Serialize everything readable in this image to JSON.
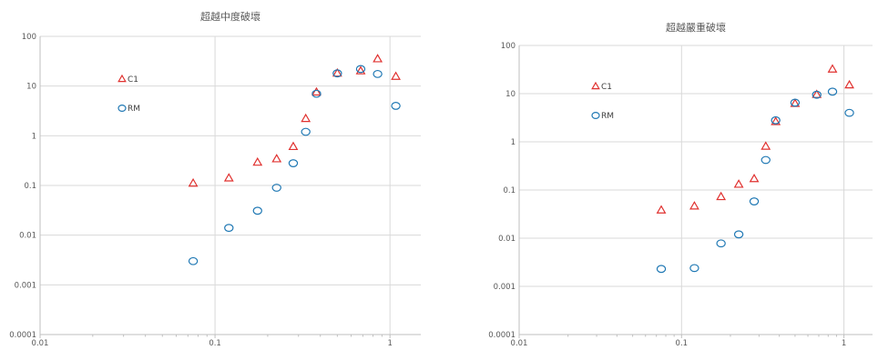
{
  "chart_data": [
    {
      "type": "scatter",
      "title": "超越中度破壞",
      "xscale": "log",
      "yscale": "log",
      "xlim": [
        0.01,
        1.5
      ],
      "ylim": [
        0.0001,
        100
      ],
      "xticks": [
        "0.01",
        "0.1",
        "1"
      ],
      "yticks": [
        "0.0001",
        "0.001",
        "0.01",
        "0.1",
        "1",
        "10",
        "100"
      ],
      "grid": true,
      "legend_position": "left",
      "series": [
        {
          "name": "C1",
          "marker": "triangle",
          "color": "#e0312f",
          "points": [
            [
              0.075,
              0.11
            ],
            [
              0.12,
              0.14
            ],
            [
              0.175,
              0.29
            ],
            [
              0.225,
              0.34
            ],
            [
              0.28,
              0.6
            ],
            [
              0.33,
              2.2
            ],
            [
              0.38,
              7.5
            ],
            [
              0.5,
              18
            ],
            [
              0.68,
              20
            ],
            [
              0.85,
              35
            ],
            [
              1.08,
              15.5
            ]
          ]
        },
        {
          "name": "RM",
          "marker": "circle",
          "color": "#1f78b4",
          "points": [
            [
              0.075,
              0.003
            ],
            [
              0.12,
              0.014
            ],
            [
              0.175,
              0.031
            ],
            [
              0.225,
              0.09
            ],
            [
              0.28,
              0.28
            ],
            [
              0.33,
              1.2
            ],
            [
              0.38,
              7
            ],
            [
              0.5,
              18
            ],
            [
              0.68,
              22
            ],
            [
              0.85,
              17.5
            ],
            [
              1.08,
              4
            ]
          ]
        }
      ]
    },
    {
      "type": "scatter",
      "title": "超越嚴重破壞",
      "xscale": "log",
      "yscale": "log",
      "xlim": [
        0.01,
        1.5
      ],
      "ylim": [
        0.0001,
        100
      ],
      "xticks": [
        "0.01",
        "0.1",
        "1"
      ],
      "yticks": [
        "0.0001",
        "0.001",
        "0.01",
        "0.1",
        "1",
        "10",
        "100"
      ],
      "grid": true,
      "legend_position": "left",
      "series": [
        {
          "name": "C1",
          "marker": "triangle",
          "color": "#e0312f",
          "points": [
            [
              0.075,
              0.038
            ],
            [
              0.12,
              0.046
            ],
            [
              0.175,
              0.072
            ],
            [
              0.225,
              0.13
            ],
            [
              0.28,
              0.17
            ],
            [
              0.33,
              0.8
            ],
            [
              0.38,
              2.6
            ],
            [
              0.5,
              6.2
            ],
            [
              0.68,
              9.5
            ],
            [
              0.85,
              32
            ],
            [
              1.08,
              15
            ]
          ]
        },
        {
          "name": "RM",
          "marker": "circle",
          "color": "#1f78b4",
          "points": [
            [
              0.075,
              0.0023
            ],
            [
              0.12,
              0.0024
            ],
            [
              0.175,
              0.0078
            ],
            [
              0.225,
              0.012
            ],
            [
              0.28,
              0.058
            ],
            [
              0.33,
              0.42
            ],
            [
              0.38,
              2.8
            ],
            [
              0.5,
              6.5
            ],
            [
              0.68,
              9.5
            ],
            [
              0.85,
              11
            ],
            [
              1.08,
              4
            ]
          ]
        }
      ]
    }
  ]
}
